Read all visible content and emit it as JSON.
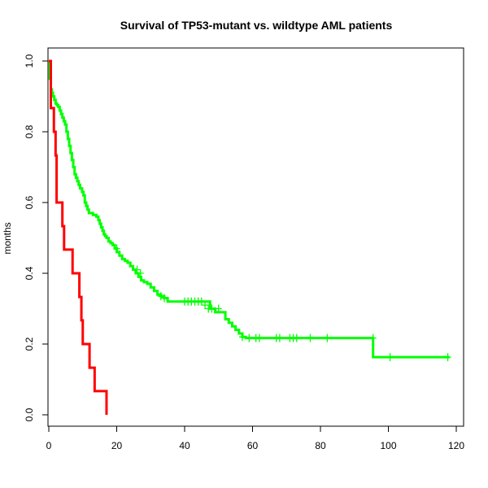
{
  "chart_data": {
    "type": "line",
    "title": "Survival of TP53-mutant vs. wildtype AML patients",
    "xlabel": "",
    "ylabel": "months",
    "xlim": [
      0,
      120
    ],
    "ylim": [
      0,
      1
    ],
    "x_ticks": [
      0,
      20,
      40,
      60,
      80,
      100,
      120
    ],
    "y_ticks": [
      0.0,
      0.2,
      0.4,
      0.6,
      0.8,
      1.0
    ],
    "x_tick_labels": [
      "0",
      "20",
      "40",
      "60",
      "80",
      "100",
      "120"
    ],
    "y_tick_labels": [
      "0.0",
      "0.2",
      "0.4",
      "0.6",
      "0.8",
      "1.0"
    ],
    "grid": false,
    "series": [
      {
        "color": "#00ff00",
        "step": true,
        "x": [
          0,
          0.3,
          0.6,
          0.9,
          1.2,
          1.6,
          2.0,
          2.4,
          2.8,
          3.2,
          3.6,
          4.0,
          4.4,
          4.8,
          5.2,
          5.6,
          6.0,
          6.4,
          6.8,
          7.2,
          7.6,
          8.0,
          8.4,
          8.8,
          9.2,
          9.8,
          10.2,
          10.6,
          11.0,
          11.4,
          11.8,
          12.2,
          13.0,
          14.0,
          14.6,
          15.0,
          15.4,
          15.8,
          16.2,
          16.6,
          17.0,
          17.6,
          18.2,
          18.8,
          19.4,
          20.0,
          20.8,
          21.6,
          22.4,
          23.2,
          24.0,
          24.8,
          25.6,
          26.4,
          27.2,
          28.0,
          29.0,
          30.0,
          31.0,
          32.0,
          33.0,
          34.0,
          35.0,
          47.5,
          49.0,
          52.0,
          53.0,
          54.0,
          55.0,
          56.0,
          57.0,
          58.0,
          95.5,
          118.0
        ],
        "y": [
          1.0,
          0.95,
          0.92,
          0.91,
          0.9,
          0.89,
          0.88,
          0.875,
          0.87,
          0.86,
          0.85,
          0.84,
          0.83,
          0.82,
          0.8,
          0.78,
          0.76,
          0.74,
          0.72,
          0.7,
          0.68,
          0.67,
          0.66,
          0.65,
          0.64,
          0.63,
          0.62,
          0.6,
          0.59,
          0.58,
          0.57,
          0.57,
          0.565,
          0.56,
          0.55,
          0.54,
          0.53,
          0.52,
          0.51,
          0.505,
          0.5,
          0.49,
          0.485,
          0.48,
          0.47,
          0.46,
          0.45,
          0.44,
          0.435,
          0.43,
          0.42,
          0.41,
          0.4,
          0.39,
          0.38,
          0.375,
          0.37,
          0.36,
          0.35,
          0.34,
          0.335,
          0.33,
          0.32,
          0.3,
          0.29,
          0.27,
          0.26,
          0.25,
          0.24,
          0.23,
          0.22,
          0.217,
          0.163,
          0.163
        ],
        "censor_x": [
          20,
          26,
          27,
          33,
          34,
          40,
          41,
          42,
          43,
          44,
          45,
          46,
          47,
          48,
          50,
          57,
          59,
          61,
          62,
          67,
          68,
          71,
          72,
          73,
          77,
          82,
          95.5,
          100.5,
          117.5
        ],
        "censor_y": [
          0.47,
          0.41,
          0.4,
          0.335,
          0.33,
          0.32,
          0.32,
          0.32,
          0.32,
          0.32,
          0.32,
          0.31,
          0.3,
          0.3,
          0.3,
          0.22,
          0.217,
          0.217,
          0.217,
          0.217,
          0.217,
          0.217,
          0.217,
          0.217,
          0.217,
          0.217,
          0.217,
          0.163,
          0.163
        ]
      },
      {
        "color": "#ff0000",
        "step": true,
        "x": [
          0,
          0.6,
          1.2,
          1.5,
          2.0,
          2.3,
          4.0,
          4.5,
          7.0,
          7.5,
          9.0,
          9.6,
          10.0,
          12.0,
          13.5,
          17.0
        ],
        "y": [
          1.0,
          0.867,
          0.867,
          0.8,
          0.733,
          0.6,
          0.533,
          0.467,
          0.4,
          0.4,
          0.333,
          0.267,
          0.2,
          0.133,
          0.067,
          0.0
        ]
      }
    ]
  }
}
